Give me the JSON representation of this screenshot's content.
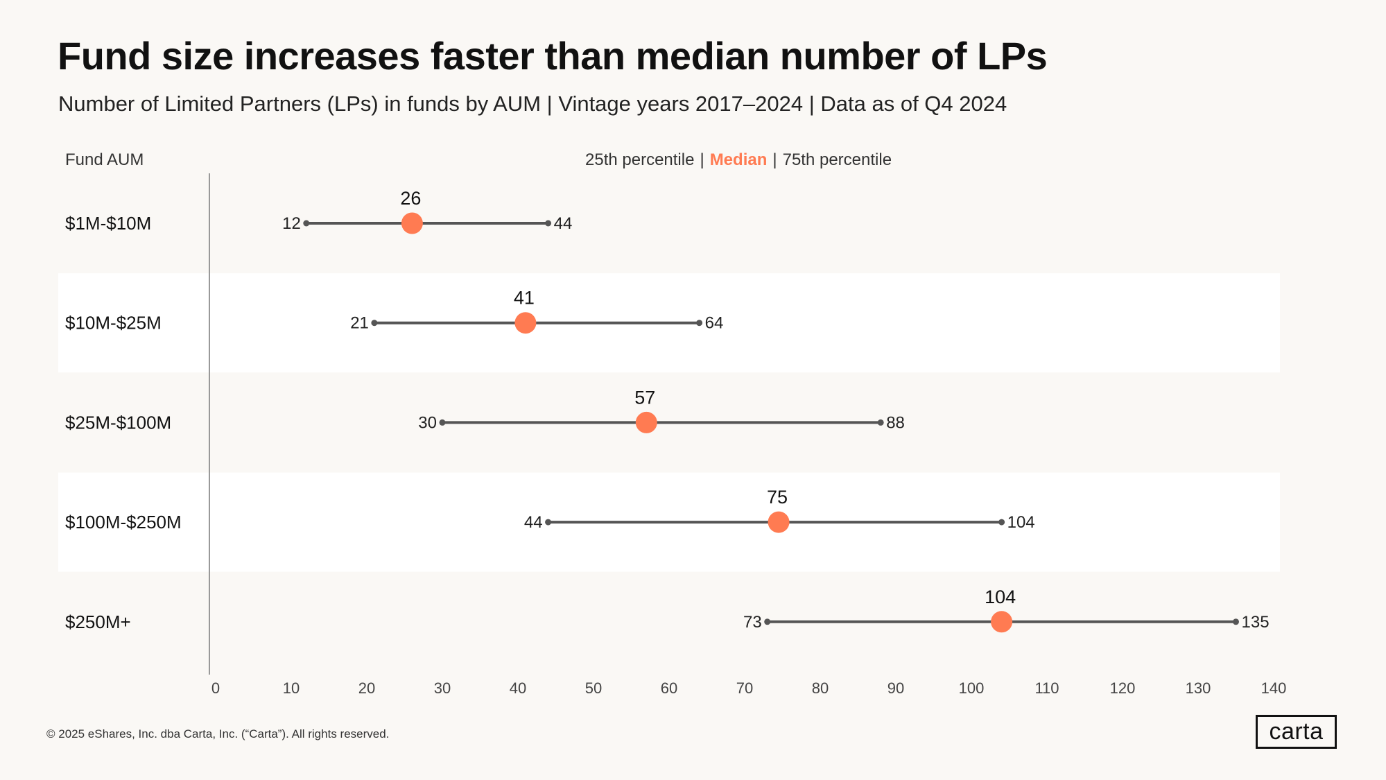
{
  "header": {
    "title": "Fund size increases faster than median number of LPs",
    "subtitle": "Number of Limited Partners (LPs) in funds by AUM | Vintage years 2017–2024 | Data as of Q4 2024"
  },
  "legend": {
    "p25_label": "25th percentile",
    "median_label": "Median",
    "p75_label": "75th percentile",
    "separator": "|"
  },
  "colors": {
    "median": "#ff7b52",
    "range_line": "#555555",
    "band": "#ffffff",
    "axis": "#999999"
  },
  "chart_data": {
    "type": "dumbbell",
    "title": "Fund size increases faster than median number of LPs",
    "ylabel": "Fund AUM",
    "xlim": [
      0,
      140
    ],
    "xticks": [
      0,
      10,
      20,
      30,
      40,
      50,
      60,
      70,
      80,
      90,
      100,
      110,
      120,
      130,
      140
    ],
    "categories": [
      "$1M-$10M",
      "$10M-$25M",
      "$25M-$100M",
      "$100M-$250M",
      "$250M+"
    ],
    "series": [
      {
        "name": "25th percentile",
        "values": [
          12,
          21,
          30,
          44,
          73
        ]
      },
      {
        "name": "Median",
        "values": [
          26,
          41,
          57,
          75,
          104
        ]
      },
      {
        "name": "75th percentile",
        "values": [
          44,
          64,
          88,
          104,
          135
        ]
      }
    ],
    "median_plot_values": [
      26,
      41,
      57,
      74.5,
      104
    ]
  },
  "footer": {
    "copyright": "© 2025 eShares, Inc. dba Carta, Inc. (“Carta”). All rights reserved.",
    "logo_text": "carta"
  }
}
